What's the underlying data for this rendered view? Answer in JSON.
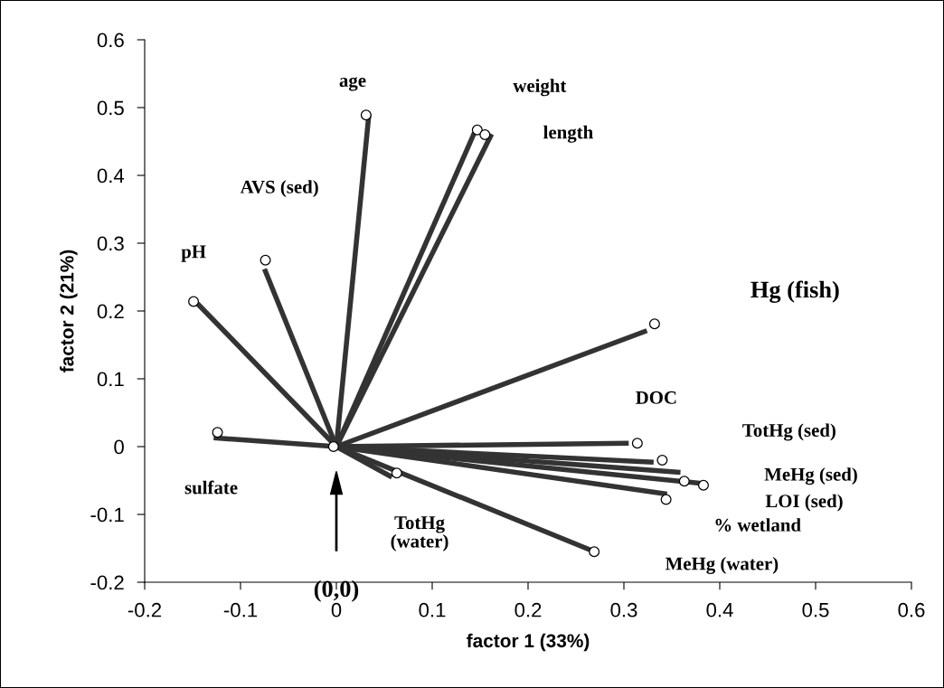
{
  "chart_data": {
    "type": "scatter",
    "xlabel": "factor 1 (33%)",
    "ylabel": "factor 2 (21%)",
    "xlim": [
      -0.2,
      0.6
    ],
    "xticks": [
      -0.2,
      -0.1,
      0,
      0.1,
      0.2,
      0.3,
      0.4,
      0.5,
      0.6
    ],
    "ylim": [
      -0.2,
      0.6
    ],
    "yticks": [
      -0.2,
      -0.1,
      0,
      0.1,
      0.2,
      0.3,
      0.4,
      0.5,
      0.6
    ],
    "grid": false,
    "legend": false,
    "series": [
      {
        "marker": "circle",
        "color": "#ffffff",
        "x": [
          0.031,
          0.147,
          0.155,
          -0.074,
          -0.149,
          0.332,
          0.314,
          -0.124,
          0.34,
          0.363,
          0.383,
          0.344,
          0.063,
          0.269,
          -0.003
        ],
        "values": [
          0.489,
          0.467,
          0.46,
          0.275,
          0.214,
          0.181,
          0.005,
          0.021,
          -0.02,
          -0.051,
          -0.057,
          -0.078,
          -0.039,
          -0.155,
          0.0
        ]
      },
      {
        "type": "line",
        "color": "#333333",
        "x": [
          0,
          0.034
        ],
        "values": [
          0,
          0.491
        ]
      },
      {
        "type": "line",
        "color": "#333333",
        "x": [
          0,
          0.144
        ],
        "values": [
          0,
          0.463
        ]
      },
      {
        "type": "line",
        "color": "#333333",
        "x": [
          0,
          0.162
        ],
        "values": [
          0,
          0.461
        ]
      },
      {
        "type": "line",
        "color": "#333333",
        "x": [
          0,
          -0.075
        ],
        "values": [
          0,
          0.262
        ]
      },
      {
        "type": "line",
        "color": "#333333",
        "x": [
          0,
          -0.145
        ],
        "values": [
          0,
          0.211
        ]
      },
      {
        "type": "line",
        "color": "#333333",
        "x": [
          0,
          0.324
        ],
        "values": [
          0,
          0.171
        ]
      },
      {
        "type": "line",
        "color": "#333333",
        "x": [
          0,
          0.305
        ],
        "values": [
          0,
          0.005
        ]
      },
      {
        "type": "line",
        "color": "#333333",
        "x": [
          0,
          -0.128
        ],
        "values": [
          0,
          0.013
        ]
      },
      {
        "type": "line",
        "color": "#333333",
        "x": [
          0,
          0.331
        ],
        "values": [
          0,
          -0.023
        ]
      },
      {
        "type": "line",
        "color": "#333333",
        "x": [
          0,
          0.359
        ],
        "values": [
          0,
          -0.038
        ]
      },
      {
        "type": "line",
        "color": "#333333",
        "x": [
          0,
          0.386
        ],
        "values": [
          0,
          -0.055
        ]
      },
      {
        "type": "line",
        "color": "#333333",
        "x": [
          0,
          0.345
        ],
        "values": [
          0,
          -0.07
        ]
      },
      {
        "type": "line",
        "color": "#333333",
        "x": [
          0,
          0.058
        ],
        "values": [
          0,
          -0.045
        ]
      },
      {
        "type": "line",
        "color": "#333333",
        "x": [
          0,
          0.266
        ],
        "values": [
          0,
          -0.153
        ]
      }
    ],
    "annotations": [
      "age",
      "weight",
      "length",
      "AVS (sed)",
      "pH",
      "Hg (fish)",
      "DOC",
      "sulfate",
      "TotHg (sed)",
      "MeHg (sed)",
      "LOI (sed)",
      "% wetland",
      "TotHg\n(water)",
      "MeHg (water)",
      "(0,0)"
    ]
  }
}
